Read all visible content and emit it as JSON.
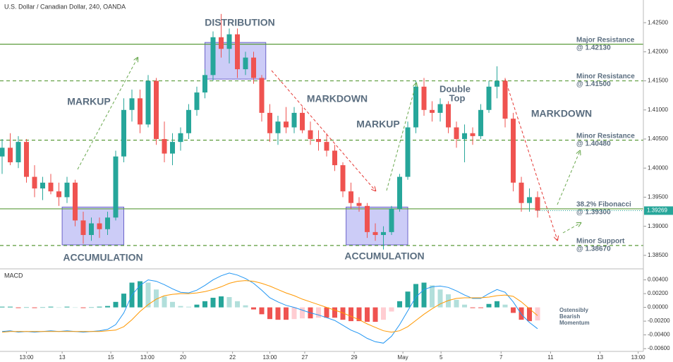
{
  "chart_data": [
    {
      "type": "candlestick",
      "title": "U.S. Dollar / Canadian Dollar, 240, OANDA",
      "up_color": "#26a69a",
      "down_color": "#ef5350",
      "candles": [
        [
          1.402,
          1.405,
          1.399,
          1.4035
        ],
        [
          1.4035,
          1.406,
          1.4005,
          1.401
        ],
        [
          1.401,
          1.4055,
          1.4,
          1.4045
        ],
        [
          1.4045,
          1.405,
          1.3975,
          1.3985
        ],
        [
          1.3985,
          1.4005,
          1.395,
          1.3965
        ],
        [
          1.3965,
          1.3985,
          1.3945,
          1.3975
        ],
        [
          1.3975,
          1.399,
          1.3955,
          1.396
        ],
        [
          1.396,
          1.3975,
          1.3935,
          1.395
        ],
        [
          1.395,
          1.3985,
          1.394,
          1.3975
        ],
        [
          1.3975,
          1.398,
          1.39,
          1.391
        ],
        [
          1.391,
          1.3925,
          1.387,
          1.3885
        ],
        [
          1.3885,
          1.3915,
          1.3875,
          1.3905
        ],
        [
          1.3905,
          1.3915,
          1.388,
          1.3895
        ],
        [
          1.3895,
          1.3925,
          1.3885,
          1.3915
        ],
        [
          1.3915,
          1.403,
          1.391,
          1.402
        ],
        [
          1.402,
          1.412,
          1.401,
          1.41
        ],
        [
          1.41,
          1.4135,
          1.408,
          1.412
        ],
        [
          1.412,
          1.4135,
          1.406,
          1.4075
        ],
        [
          1.4075,
          1.416,
          1.407,
          1.415
        ],
        [
          1.415,
          1.4155,
          1.404,
          1.405
        ],
        [
          1.405,
          1.408,
          1.401,
          1.4025
        ],
        [
          1.4025,
          1.406,
          1.4005,
          1.4045
        ],
        [
          1.4045,
          1.407,
          1.403,
          1.406
        ],
        [
          1.406,
          1.411,
          1.405,
          1.41
        ],
        [
          1.41,
          1.414,
          1.409,
          1.413
        ],
        [
          1.413,
          1.417,
          1.412,
          1.416
        ],
        [
          1.416,
          1.4235,
          1.415,
          1.4225
        ],
        [
          1.4225,
          1.4265,
          1.419,
          1.4205
        ],
        [
          1.4205,
          1.424,
          1.418,
          1.423
        ],
        [
          1.423,
          1.424,
          1.4155,
          1.417
        ],
        [
          1.417,
          1.42,
          1.416,
          1.419
        ],
        [
          1.419,
          1.42,
          1.4145,
          1.4155
        ],
        [
          1.4155,
          1.416,
          1.408,
          1.4095
        ],
        [
          1.4095,
          1.411,
          1.4045,
          1.406
        ],
        [
          1.406,
          1.409,
          1.404,
          1.408
        ],
        [
          1.408,
          1.4105,
          1.406,
          1.407
        ],
        [
          1.407,
          1.4105,
          1.406,
          1.4095
        ],
        [
          1.4095,
          1.4105,
          1.406,
          1.4065
        ],
        [
          1.4065,
          1.408,
          1.404,
          1.405
        ],
        [
          1.405,
          1.4065,
          1.403,
          1.4045
        ],
        [
          1.4045,
          1.406,
          1.402,
          1.403
        ],
        [
          1.403,
          1.404,
          1.3995,
          1.4005
        ],
        [
          1.4005,
          1.401,
          1.395,
          1.396
        ],
        [
          1.396,
          1.3975,
          1.393,
          1.394
        ],
        [
          1.394,
          1.395,
          1.3925,
          1.3935
        ],
        [
          1.3935,
          1.394,
          1.388,
          1.389
        ],
        [
          1.389,
          1.3905,
          1.3875,
          1.3885
        ],
        [
          1.3885,
          1.39,
          1.386,
          1.389
        ],
        [
          1.389,
          1.3935,
          1.3885,
          1.393
        ],
        [
          1.393,
          1.399,
          1.3925,
          1.3985
        ],
        [
          1.3985,
          1.408,
          1.398,
          1.407
        ],
        [
          1.407,
          1.415,
          1.406,
          1.414
        ],
        [
          1.414,
          1.4155,
          1.409,
          1.41
        ],
        [
          1.41,
          1.4115,
          1.408,
          1.4095
        ],
        [
          1.4095,
          1.412,
          1.408,
          1.411
        ],
        [
          1.411,
          1.4115,
          1.406,
          1.407
        ],
        [
          1.407,
          1.408,
          1.4035,
          1.405
        ],
        [
          1.405,
          1.4075,
          1.401,
          1.406
        ],
        [
          1.406,
          1.407,
          1.404,
          1.4055
        ],
        [
          1.4055,
          1.411,
          1.405,
          1.41
        ],
        [
          1.41,
          1.415,
          1.4095,
          1.414
        ],
        [
          1.414,
          1.4175,
          1.412,
          1.415
        ],
        [
          1.415,
          1.4155,
          1.407,
          1.4085
        ],
        [
          1.4085,
          1.4095,
          1.396,
          1.3975
        ],
        [
          1.3975,
          1.3985,
          1.3925,
          1.394
        ],
        [
          1.394,
          1.3965,
          1.3925,
          1.395
        ],
        [
          1.395,
          1.396,
          1.3915,
          1.39269
        ]
      ],
      "xlim": [
        -0.26,
        79.04
      ],
      "xticks": [
        {
          "value": 3,
          "label": "13:00"
        },
        {
          "value": 7.4,
          "label": "13"
        },
        {
          "value": 13.4,
          "label": "15"
        },
        {
          "value": 17.9,
          "label": "13:00"
        },
        {
          "value": 22.3,
          "label": "20"
        },
        {
          "value": 28.4,
          "label": "22"
        },
        {
          "value": 33,
          "label": "13:00"
        },
        {
          "value": 37.3,
          "label": "27"
        },
        {
          "value": 43.4,
          "label": "29"
        },
        {
          "value": 49.4,
          "label": "May"
        },
        {
          "value": 54.1,
          "label": "5"
        },
        {
          "value": 61.5,
          "label": "7"
        },
        {
          "value": 67.6,
          "label": "11"
        },
        {
          "value": 73.7,
          "label": "13"
        },
        {
          "value": 78.4,
          "label": "13:00"
        }
      ],
      "ylim": [
        1.3828,
        1.4289
      ],
      "yticks": [
        {
          "value": 1.425,
          "label": "1.42500"
        },
        {
          "value": 1.42,
          "label": "1.42000"
        },
        {
          "value": 1.415,
          "label": "1.41500"
        },
        {
          "value": 1.41,
          "label": "1.41000"
        },
        {
          "value": 1.405,
          "label": "1.40500"
        },
        {
          "value": 1.4,
          "label": "1.40000"
        },
        {
          "value": 1.395,
          "label": "1.39500"
        },
        {
          "value": 1.39,
          "label": "1.39000"
        },
        {
          "value": 1.385,
          "label": "1.38500"
        }
      ],
      "level_color": "#5b9b3a",
      "levels": [
        {
          "value": 1.4213,
          "name": "Major Resistance",
          "label": "@ 1.42130",
          "style": "solid"
        },
        {
          "value": 1.415,
          "name": "Minor Resistance",
          "label": "@ 1.41500",
          "style": "dashed"
        },
        {
          "value": 1.4048,
          "name": "Minor Resistance",
          "label": "@ 1.40480",
          "style": "dashed"
        },
        {
          "value": 1.393,
          "name": "38.2% Fibonacci",
          "label": "@ 1.39300",
          "style": "solid"
        },
        {
          "value": 1.3867,
          "name": "Minor Support",
          "label": "@ 1.38670",
          "style": "dashed"
        }
      ],
      "zones": [
        {
          "from": 7.4,
          "to": 15,
          "low": 1.3868,
          "high": 1.3933
        },
        {
          "from": 25,
          "to": 32.5,
          "low": 1.4153,
          "high": 1.4216
        },
        {
          "from": 42.4,
          "to": 50,
          "low": 1.3868,
          "high": 1.3933
        }
      ],
      "last_price": 1.39269,
      "annotations": [
        "DISTRIBUTION",
        "MARKUP",
        "ACCUMULATION",
        "MARKDOWN",
        "MARKUP",
        "ACCUMULATION",
        "Double",
        "Top",
        "MARKDOWN"
      ]
    },
    {
      "type": "macd",
      "title": "MACD",
      "ylim": [
        -0.0063,
        0.0055
      ],
      "yticks": [
        {
          "value": 0.004,
          "label": "0.00400"
        },
        {
          "value": 0.002,
          "label": "0.00200"
        },
        {
          "value": 0,
          "label": "0.00000"
        },
        {
          "value": -0.002,
          "label": "-0.00200"
        },
        {
          "value": -0.004,
          "label": "-0.00400"
        },
        {
          "value": -0.006,
          "label": "-0.00600"
        }
      ],
      "histogram": {
        "colors": {
          "grow_above": "#26a69a",
          "fall_above": "#b2dfdb",
          "rise_below": "#ffcdd2",
          "fall_below": "#ef5350"
        },
        "values": [
          0.0001,
          0.0001,
          -0.0001,
          0,
          -0.0001,
          0,
          0.0001,
          0,
          0.0001,
          0,
          -0.0001,
          0,
          0.0001,
          0.0002,
          0.0008,
          0.002,
          0.0036,
          0.0038,
          0.0036,
          0.0026,
          0.0016,
          0.0008,
          0.0002,
          0.0001,
          0.0004,
          0.0009,
          0.0014,
          0.0016,
          0.0015,
          0.0009,
          0.0003,
          -0.0003,
          -0.001,
          -0.0017,
          -0.0018,
          -0.0018,
          -0.0017,
          -0.0016,
          -0.0016,
          -0.0015,
          -0.0015,
          -0.0015,
          -0.0018,
          -0.002,
          -0.002,
          -0.0021,
          -0.0021,
          -0.0018,
          -0.0006,
          0.0009,
          0.0023,
          0.0034,
          0.0036,
          0.0032,
          0.0026,
          0.0019,
          0.0011,
          0.0004,
          -0.0001,
          -0.0001,
          0.0005,
          0.0009,
          0.0004,
          -0.0008,
          -0.0018,
          -0.002,
          -0.0019
        ]
      },
      "series": [
        {
          "color": "#2196f3",
          "values": [
            -0.0035,
            -0.0034,
            -0.0036,
            -0.0035,
            -0.0036,
            -0.0035,
            -0.0034,
            -0.0035,
            -0.0034,
            -0.0035,
            -0.0036,
            -0.0035,
            -0.0034,
            -0.0032,
            -0.0025,
            -0.0008,
            0.0018,
            0.0032,
            0.004,
            0.0038,
            0.0033,
            0.0027,
            0.0022,
            0.0021,
            0.0025,
            0.0032,
            0.004,
            0.0046,
            0.005,
            0.0047,
            0.0042,
            0.0035,
            0.0025,
            0.0014,
            0.0008,
            0.0003,
            0,
            -0.0004,
            -0.0008,
            -0.0011,
            -0.0015,
            -0.0019,
            -0.0026,
            -0.0033,
            -0.0038,
            -0.0045,
            -0.005,
            -0.0052,
            -0.0042,
            -0.0025,
            -0.0005,
            0.0015,
            0.0026,
            0.003,
            0.0031,
            0.0029,
            0.0024,
            0.0018,
            0.0013,
            0.0013,
            0.002,
            0.0026,
            0.0022,
            0.0008,
            -0.001,
            -0.0022,
            -0.0031
          ]
        },
        {
          "color": "#ff9800",
          "values": [
            -0.0036,
            -0.0035,
            -0.0035,
            -0.0035,
            -0.0035,
            -0.0035,
            -0.0035,
            -0.0035,
            -0.0035,
            -0.0035,
            -0.0035,
            -0.0035,
            -0.0035,
            -0.0034,
            -0.0033,
            -0.0028,
            -0.0018,
            -0.0006,
            0.0004,
            0.0012,
            0.0017,
            0.0019,
            0.002,
            0.002,
            0.0021,
            0.0023,
            0.0026,
            0.003,
            0.0035,
            0.0038,
            0.0039,
            0.0038,
            0.0035,
            0.0031,
            0.0026,
            0.0021,
            0.0017,
            0.0012,
            0.0008,
            0.0004,
            0,
            -0.0004,
            -0.0008,
            -0.0013,
            -0.0018,
            -0.0024,
            -0.0029,
            -0.0034,
            -0.0036,
            -0.0034,
            -0.0028,
            -0.0019,
            -0.001,
            -0.0002,
            0.0005,
            0.001,
            0.0013,
            0.0014,
            0.0014,
            0.0014,
            0.0015,
            0.0017,
            0.0018,
            0.0016,
            0.0008,
            -0.0002,
            -0.0012
          ]
        }
      ],
      "annotations": [
        "Ostensibly",
        "Bearish",
        "Momentum"
      ]
    }
  ]
}
